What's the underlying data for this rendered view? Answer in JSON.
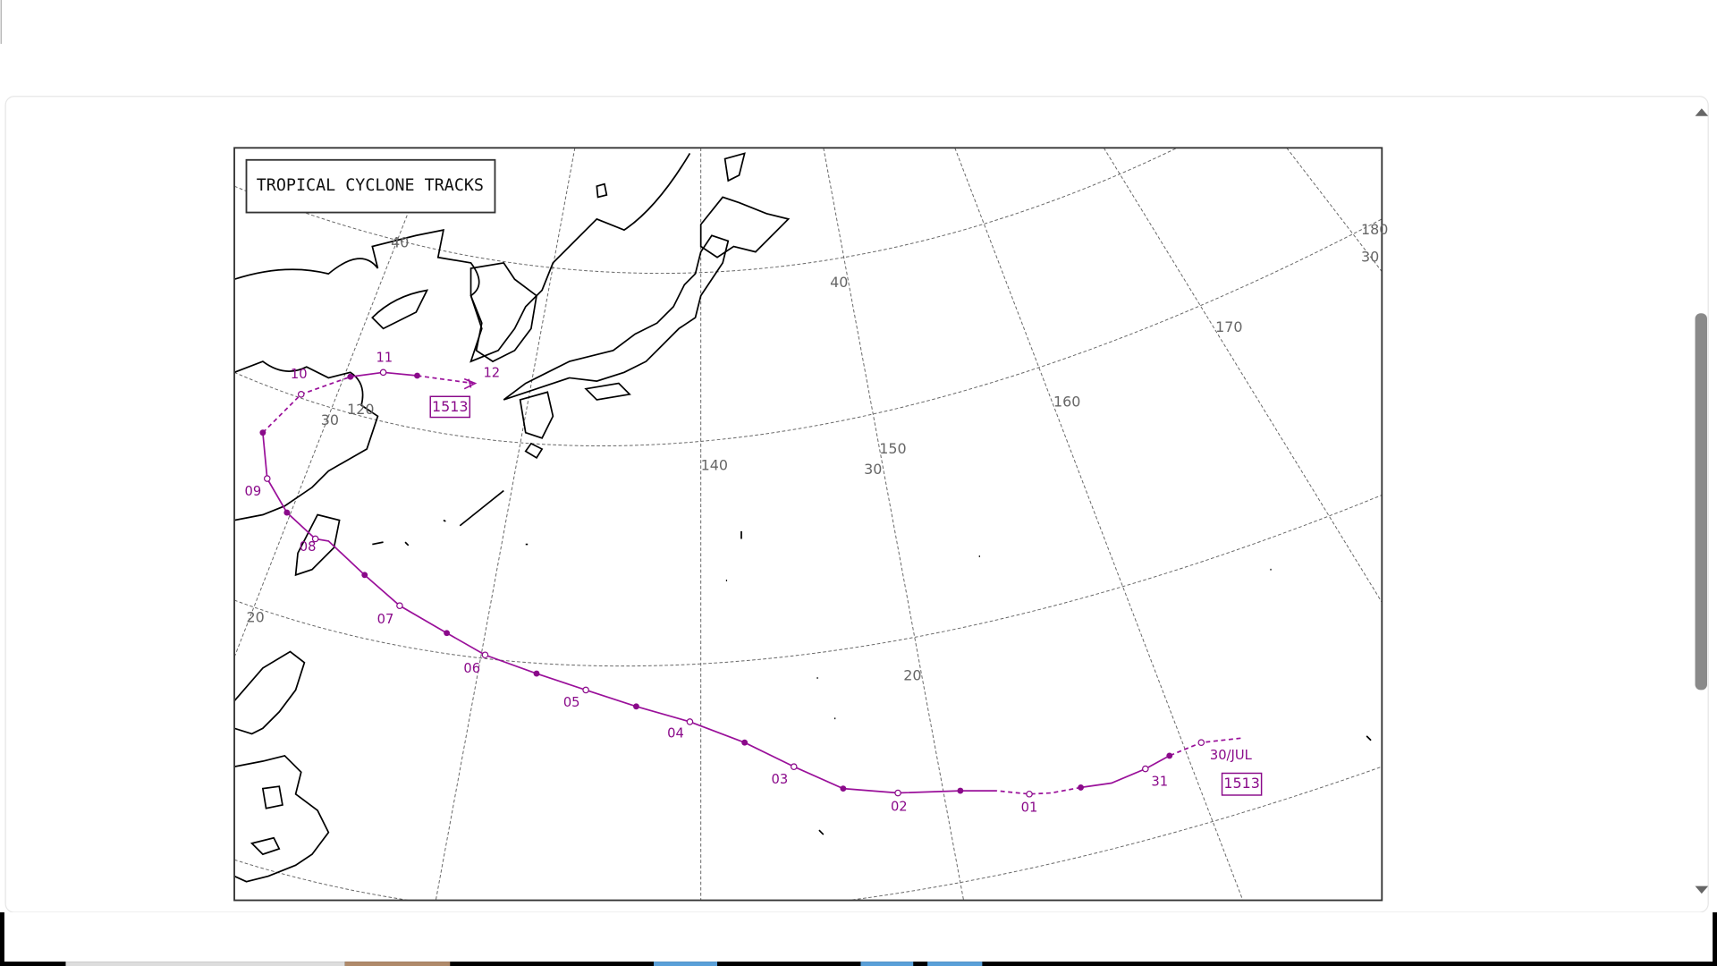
{
  "title": "TROPICAL CYCLONE TRACKS",
  "track": {
    "id_labels": [
      "1513",
      "1513"
    ],
    "date_labels": [
      "30/JUL",
      "31",
      "01",
      "02",
      "03",
      "04",
      "05",
      "06",
      "07",
      "08",
      "09",
      "10",
      "11",
      "12"
    ]
  },
  "grid_labels": {
    "latitude": [
      "40",
      "40",
      "30",
      "30",
      "30",
      "20",
      "20"
    ],
    "longitude": [
      "120",
      "140",
      "150",
      "160",
      "170",
      "180"
    ]
  }
}
